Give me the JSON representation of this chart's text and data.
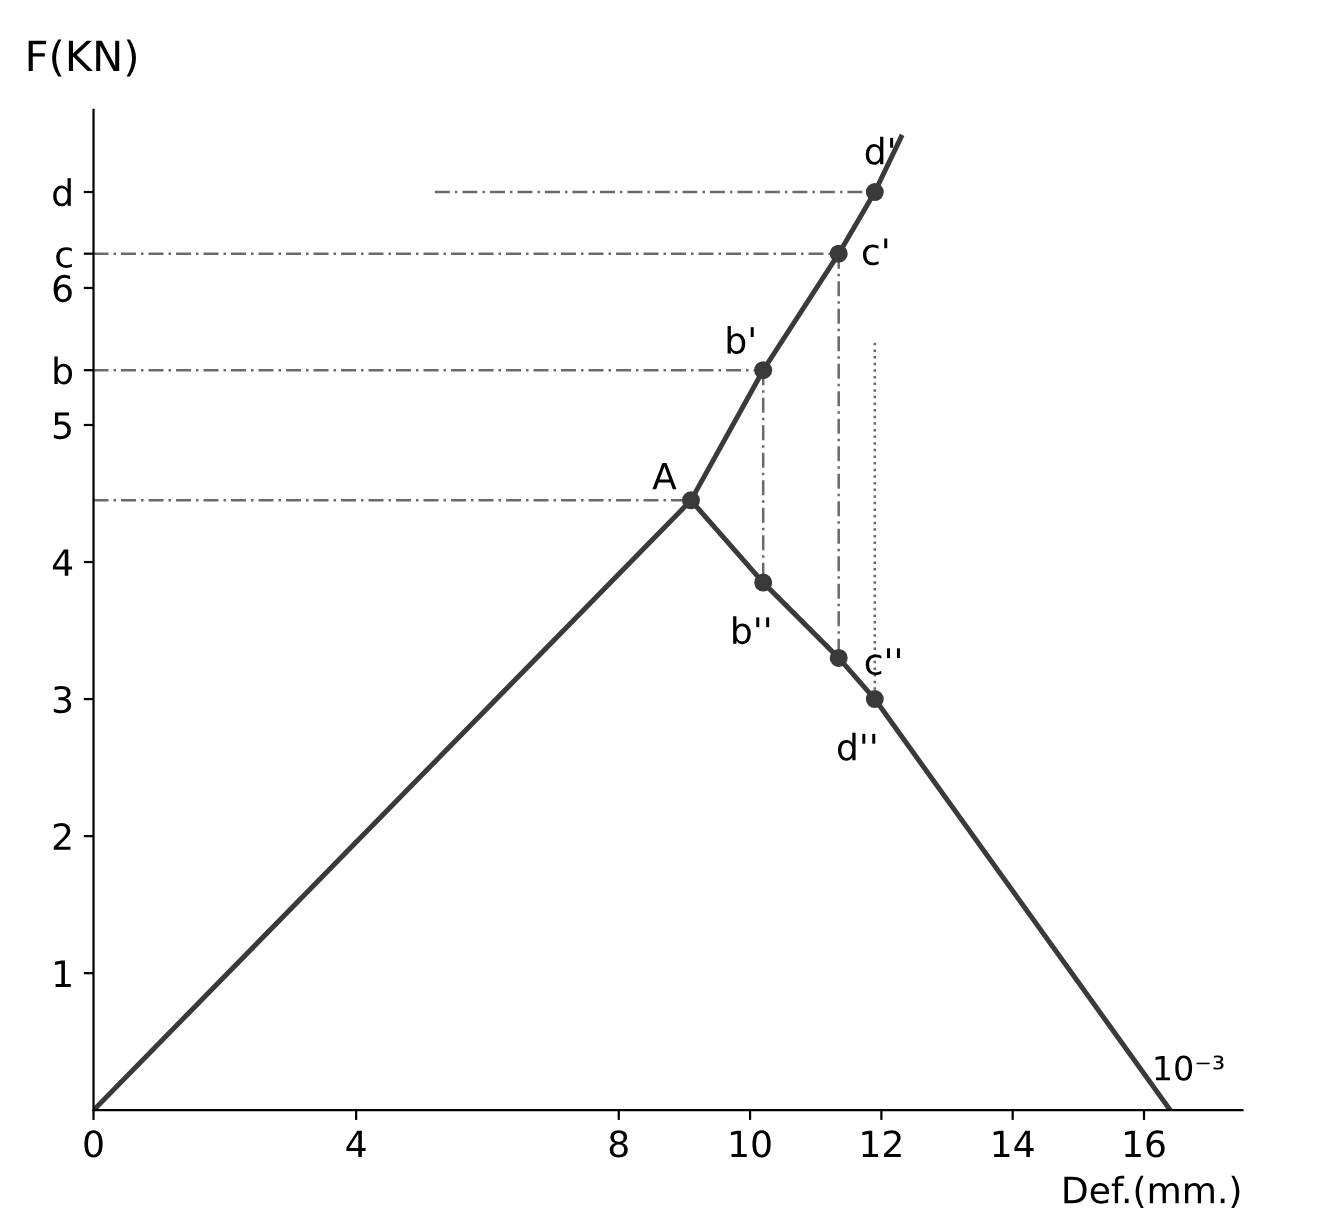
{
  "chart_data": {
    "type": "line",
    "xlabel": "Def.(mm.)",
    "ylabel": "F(KN)",
    "xlim": [
      0,
      17.5
    ],
    "ylim": [
      0,
      7.3
    ],
    "xticks": [
      0,
      4,
      8,
      10,
      12,
      14,
      16
    ],
    "yticks": [
      1,
      2,
      3,
      4,
      5,
      {
        "value": 5.4,
        "label": "b"
      },
      6,
      {
        "value": 6.25,
        "label": "c"
      },
      {
        "value": 6.7,
        "label": "d"
      }
    ],
    "grid": false,
    "legend": false,
    "series": [
      {
        "color": "#3a3a3a",
        "line_style": "solid",
        "x": [
          0,
          9.1,
          10.2,
          11.35,
          11.9,
          12.3
        ],
        "values": [
          0,
          4.45,
          5.4,
          6.25,
          6.7,
          7.1
        ]
      },
      {
        "type": "line",
        "color": "#3a3a3a",
        "line_style": "solid",
        "x": [
          9.1,
          10.2,
          11.35,
          11.9,
          16.4
        ],
        "values": [
          4.45,
          3.85,
          3.3,
          3.0,
          0
        ]
      },
      {
        "type": "scatter",
        "color": "#3a3a3a",
        "marker": "circle",
        "x": [
          9.1,
          10.2,
          11.35,
          11.9,
          10.2,
          11.35,
          11.9
        ],
        "values": [
          4.45,
          5.4,
          6.25,
          6.7,
          3.85,
          3.3,
          3.0
        ]
      },
      {
        "type": "line",
        "color": "#6a6a6a",
        "line_style": "dashed",
        "x": [
          0,
          9.1
        ],
        "values": [
          4.45,
          4.45
        ]
      },
      {
        "type": "line",
        "color": "#6a6a6a",
        "line_style": "dashed",
        "x": [
          0,
          10.2
        ],
        "values": [
          5.4,
          5.4
        ]
      },
      {
        "type": "line",
        "color": "#6a6a6a",
        "line_style": "dashed",
        "x": [
          0,
          11.35
        ],
        "values": [
          6.25,
          6.25
        ]
      },
      {
        "type": "line",
        "color": "#6a6a6a",
        "line_style": "dashed",
        "x": [
          5.2,
          11.9
        ],
        "values": [
          6.7,
          6.7
        ]
      },
      {
        "type": "line",
        "color": "#6a6a6a",
        "line_style": "dashed",
        "x": [
          10.2,
          10.2
        ],
        "values": [
          5.4,
          3.85
        ]
      },
      {
        "type": "line",
        "color": "#6a6a6a",
        "line_style": "dashed",
        "x": [
          11.35,
          11.35
        ],
        "values": [
          6.25,
          3.3
        ]
      },
      {
        "type": "line",
        "color": "#6a6a6a",
        "line_style": "dotted",
        "x": [
          11.9,
          11.9
        ],
        "values": [
          5.6,
          3.0
        ]
      }
    ],
    "annotations": [
      {
        "text": "A",
        "x": 9.1,
        "y": 4.45
      },
      {
        "text": "b'",
        "x": 10.2,
        "y": 5.4
      },
      {
        "text": "c'",
        "x": 11.35,
        "y": 6.25
      },
      {
        "text": "d'",
        "x": 11.9,
        "y": 6.7
      },
      {
        "text": "b''",
        "x": 10.2,
        "y": 3.85
      },
      {
        "text": "c''",
        "x": 11.35,
        "y": 3.3
      },
      {
        "text": "d''",
        "x": 11.9,
        "y": 3.0
      },
      "10⁻³"
    ]
  }
}
